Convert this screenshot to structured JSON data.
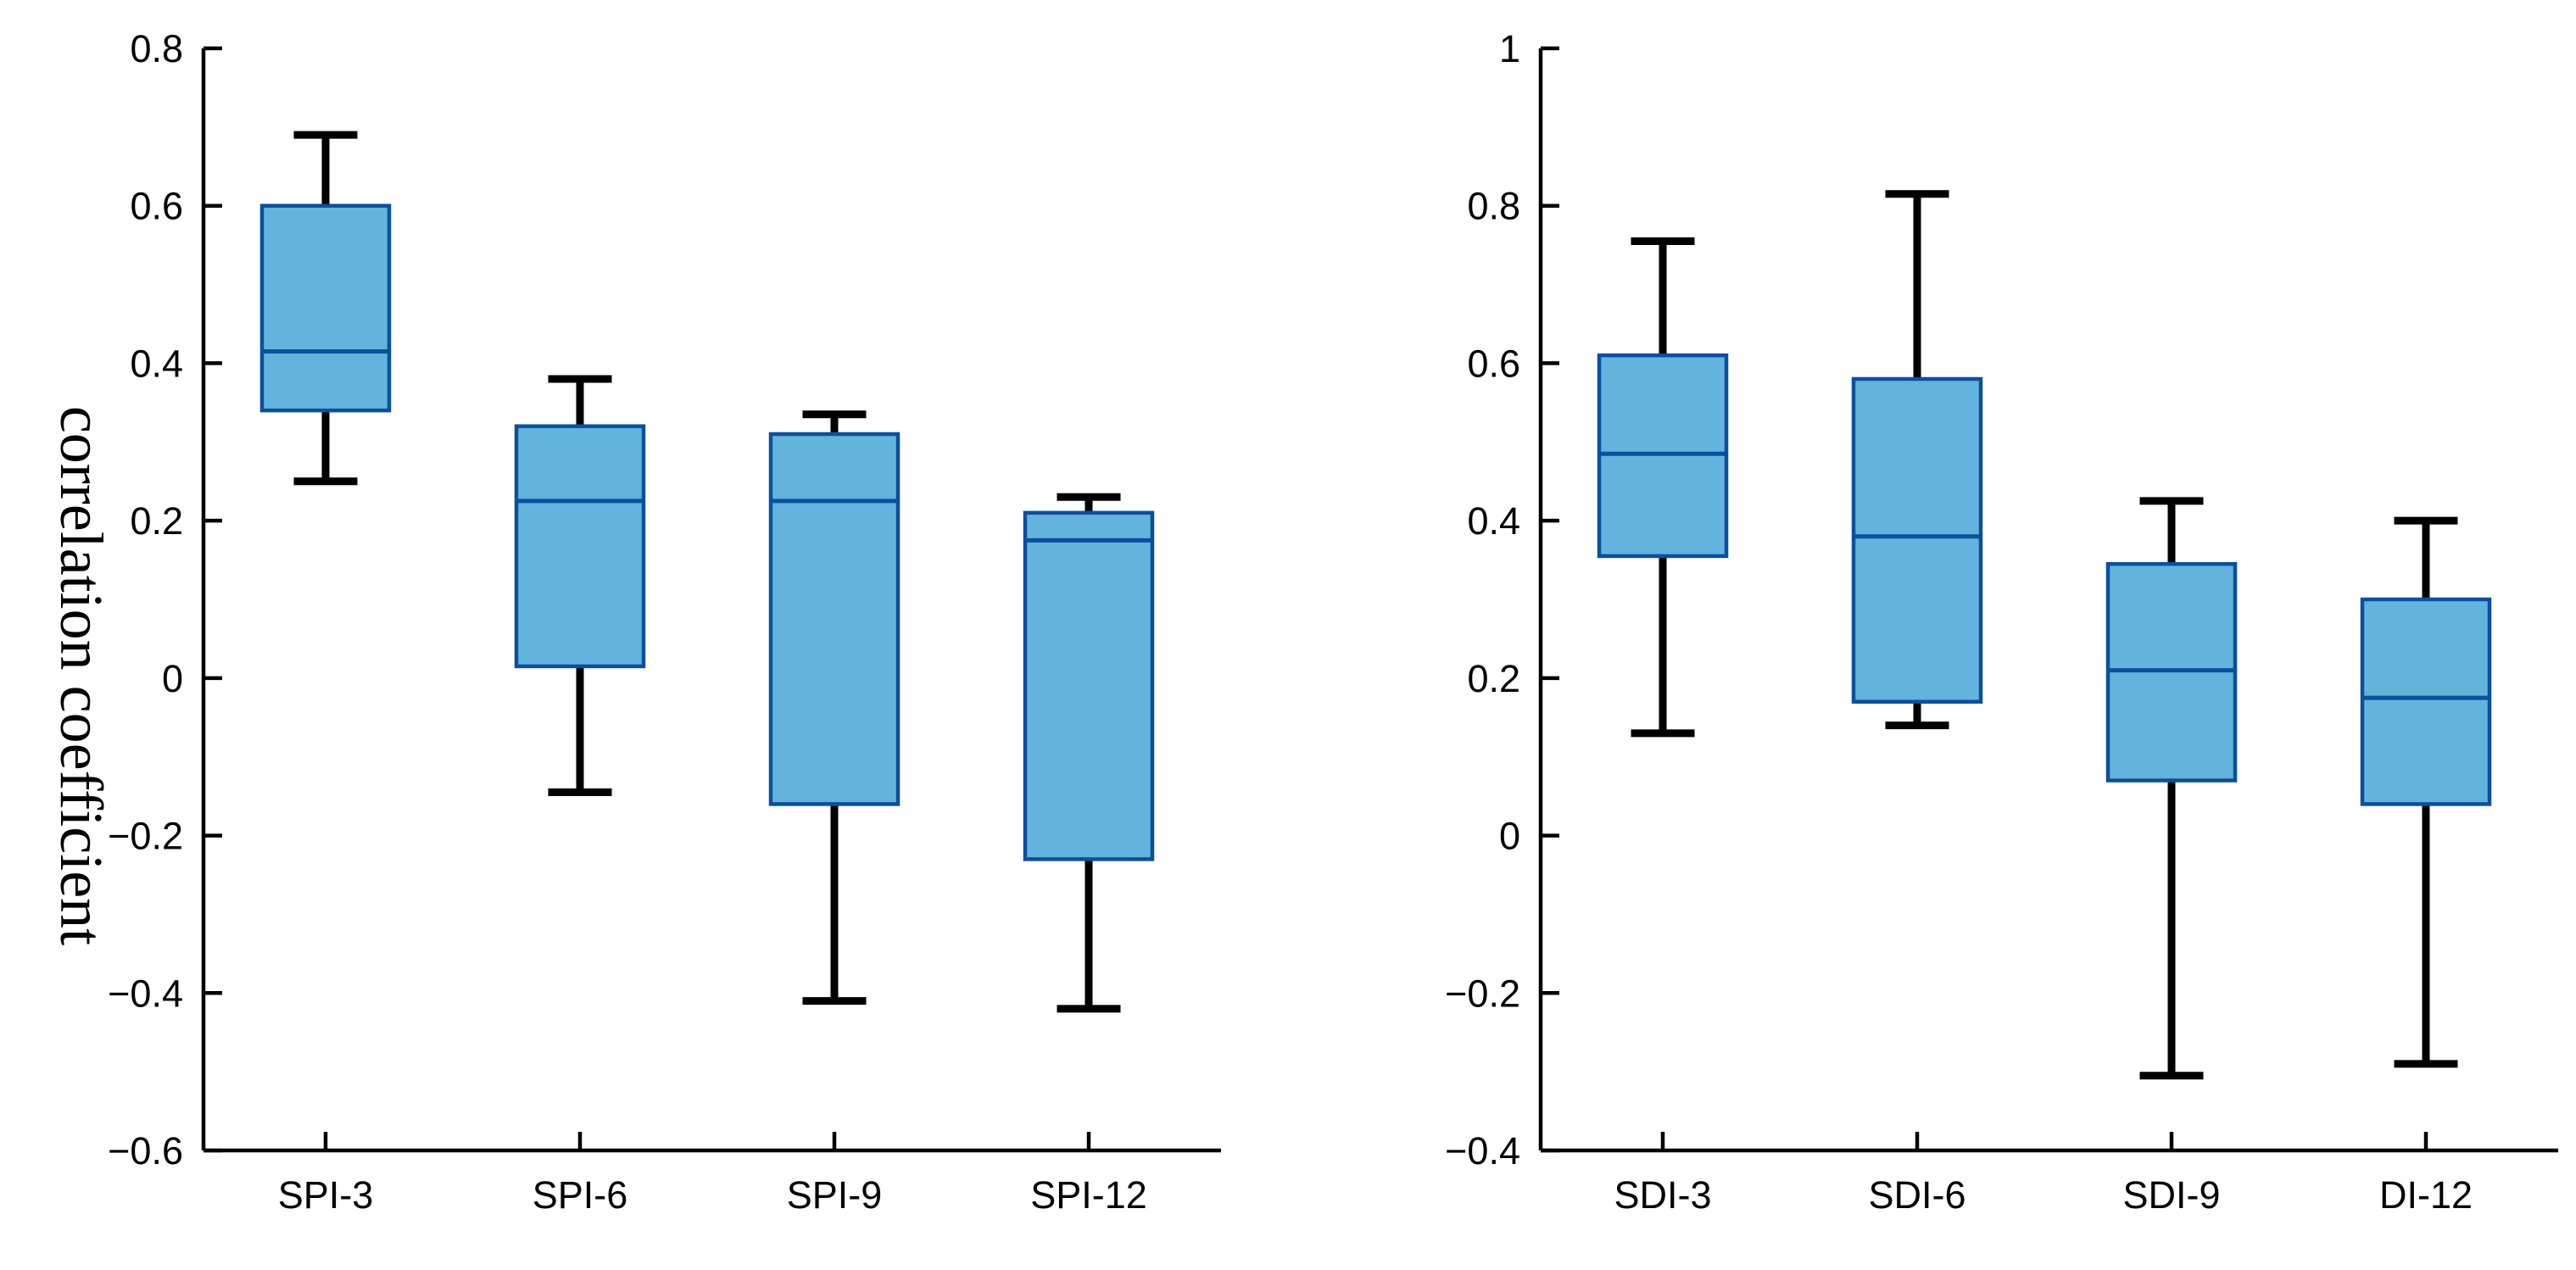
{
  "chart_data": [
    {
      "type": "box",
      "title": "",
      "xlabel": "",
      "ylabel": "correlation coefficient",
      "ylim": [
        -0.6,
        0.8
      ],
      "yticks": [
        -0.6,
        -0.4,
        -0.2,
        0,
        0.2,
        0.4,
        0.6,
        0.8
      ],
      "ytick_labels": [
        "−0.6",
        "−0.4",
        "−0.2",
        "0",
        "0.2",
        "0.4",
        "0.6",
        "0.8"
      ],
      "categories": [
        "SPI-3",
        "SPI-6",
        "SPI-9",
        "SPI-12"
      ],
      "boxes": [
        {
          "whisker_low": 0.25,
          "q1": 0.34,
          "median": 0.415,
          "q3": 0.6,
          "whisker_high": 0.69
        },
        {
          "whisker_low": -0.145,
          "q1": 0.015,
          "median": 0.225,
          "q3": 0.32,
          "whisker_high": 0.38
        },
        {
          "whisker_low": -0.41,
          "q1": -0.16,
          "median": 0.225,
          "q3": 0.31,
          "whisker_high": 0.335
        },
        {
          "whisker_low": -0.42,
          "q1": -0.23,
          "median": 0.175,
          "q3": 0.21,
          "whisker_high": 0.23
        }
      ]
    },
    {
      "type": "box",
      "title": "",
      "xlabel": "",
      "ylabel": "",
      "ylim": [
        -0.4,
        1.0
      ],
      "yticks": [
        -0.4,
        -0.2,
        0,
        0.2,
        0.4,
        0.6,
        0.8,
        1.0
      ],
      "ytick_labels": [
        "−0.4",
        "−0.2",
        "0",
        "0.2",
        "0.4",
        "0.6",
        "0.8",
        "1"
      ],
      "categories": [
        "SDI-3",
        "SDI-6",
        "SDI-9",
        "DI-12"
      ],
      "boxes": [
        {
          "whisker_low": 0.13,
          "q1": 0.355,
          "median": 0.485,
          "q3": 0.61,
          "whisker_high": 0.755
        },
        {
          "whisker_low": 0.14,
          "q1": 0.17,
          "median": 0.38,
          "q3": 0.58,
          "whisker_high": 0.815
        },
        {
          "whisker_low": -0.305,
          "q1": 0.07,
          "median": 0.21,
          "q3": 0.345,
          "whisker_high": 0.425
        },
        {
          "whisker_low": -0.29,
          "q1": 0.04,
          "median": 0.175,
          "q3": 0.3,
          "whisker_high": 0.4
        }
      ]
    }
  ],
  "colors": {
    "box_fill": "#63b4dd",
    "box_edge": "#0b4f9e",
    "whisker": "#000000",
    "axis": "#000000",
    "text": "#000000",
    "background": "#ffffff"
  }
}
